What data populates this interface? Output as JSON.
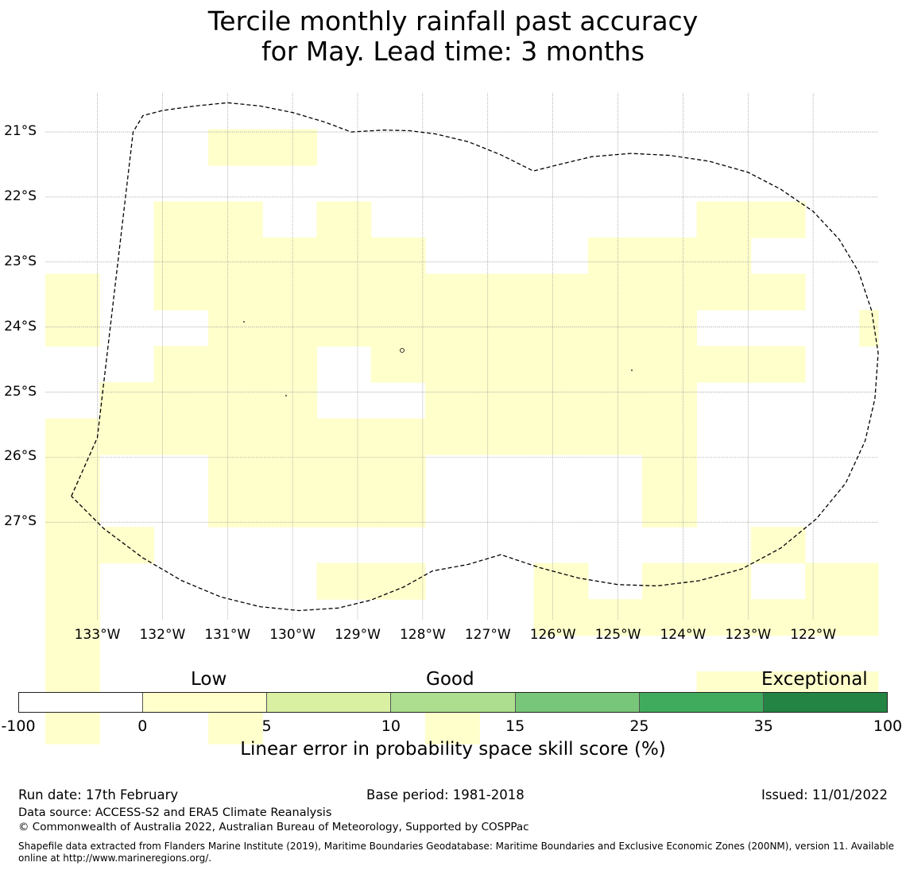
{
  "title_line1": "Tercile monthly rainfall past accuracy",
  "title_line2": "for May. Lead time: 3 months",
  "map": {
    "lon_min": -133.8,
    "lon_max": -121.0,
    "lat_top": -20.4,
    "lat_bottom": -28.5,
    "lat_labels": [
      "21°S",
      "22°S",
      "23°S",
      "24°S",
      "25°S",
      "26°S",
      "27°S"
    ],
    "lat_values": [
      -21,
      -22,
      -23,
      -24,
      -25,
      -26,
      -27
    ],
    "lon_labels": [
      "133°W",
      "132°W",
      "131°W",
      "130°W",
      "129°W",
      "128°W",
      "127°W",
      "126°W",
      "125°W",
      "124°W",
      "123°W",
      "122°W"
    ],
    "lon_values": [
      -133,
      -132,
      -131,
      -130,
      -129,
      -128,
      -127,
      -126,
      -125,
      -124,
      -123,
      -122
    ],
    "grid_lon0": -133.8,
    "grid_lat0": -20.4,
    "grid_step_lon": 0.834,
    "grid_step_lat": 0.556,
    "cell_colors": {
      "1": "#ffffcc",
      "2": "#d9f0a3"
    },
    "grid": [
      "00000000000000001111112",
      "00011000000000000011112",
      "00000000000000000000111",
      "00110100000011000011001",
      "00111110001110000000001",
      "10111111111111000001111",
      "10011111111100011111001",
      "00111011111111000111110",
      "01111001111100000111110",
      "11111111111100001111111",
      "10011110000100000001111",
      "10011110000100000111111",
      "11000000000001000110111",
      "10000110010110111101111",
      "10000000011111111111111",
      "10000000000000001111011",
      "10000000000011111111111",
      "10010001000000000000000"
    ],
    "eez_boundary": [
      [
        -133.4,
        -26.6
      ],
      [
        -133.0,
        -25.7
      ],
      [
        -132.45,
        -21.0
      ],
      [
        -132.3,
        -20.75
      ],
      [
        -132.0,
        -20.67
      ],
      [
        -131.5,
        -20.6
      ],
      [
        -131.0,
        -20.55
      ],
      [
        -130.5,
        -20.6
      ],
      [
        -130.0,
        -20.7
      ],
      [
        -129.5,
        -20.85
      ],
      [
        -129.1,
        -21.0
      ],
      [
        -128.6,
        -20.97
      ],
      [
        -128.2,
        -20.98
      ],
      [
        -127.8,
        -21.03
      ],
      [
        -127.3,
        -21.15
      ],
      [
        -126.8,
        -21.35
      ],
      [
        -126.3,
        -21.6
      ],
      [
        -125.9,
        -21.5
      ],
      [
        -125.4,
        -21.38
      ],
      [
        -124.8,
        -21.33
      ],
      [
        -124.2,
        -21.36
      ],
      [
        -123.6,
        -21.45
      ],
      [
        -123.0,
        -21.62
      ],
      [
        -122.5,
        -21.88
      ],
      [
        -122.0,
        -22.22
      ],
      [
        -121.6,
        -22.65
      ],
      [
        -121.3,
        -23.15
      ],
      [
        -121.1,
        -23.75
      ],
      [
        -121.0,
        -24.4
      ],
      [
        -121.05,
        -25.1
      ],
      [
        -121.2,
        -25.75
      ],
      [
        -121.5,
        -26.4
      ],
      [
        -121.95,
        -26.95
      ],
      [
        -122.5,
        -27.4
      ],
      [
        -123.1,
        -27.72
      ],
      [
        -123.75,
        -27.9
      ],
      [
        -124.4,
        -27.98
      ],
      [
        -125.0,
        -27.96
      ],
      [
        -125.6,
        -27.86
      ],
      [
        -126.2,
        -27.7
      ],
      [
        -126.8,
        -27.5
      ],
      [
        -127.3,
        -27.65
      ],
      [
        -127.85,
        -27.75
      ],
      [
        -128.3,
        -28.0
      ],
      [
        -128.8,
        -28.2
      ],
      [
        -129.3,
        -28.32
      ],
      [
        -129.9,
        -28.36
      ],
      [
        -130.5,
        -28.3
      ],
      [
        -131.1,
        -28.15
      ],
      [
        -131.7,
        -27.9
      ],
      [
        -132.3,
        -27.55
      ],
      [
        -132.9,
        -27.1
      ],
      [
        -133.4,
        -26.6
      ]
    ]
  },
  "legend": {
    "categories": [
      "Low",
      "Good",
      "Exceptional"
    ],
    "colors": [
      "#ffffff",
      "#ffffcc",
      "#d9f0a3",
      "#addd8e",
      "#78c679",
      "#41ab5d",
      "#238443"
    ],
    "ticks": [
      "-100",
      "0",
      "5",
      "10",
      "15",
      "25",
      "35",
      "100"
    ],
    "label": "Linear error in probability space skill score (%)"
  },
  "footer": {
    "run_date": "Run date: 17th February",
    "base_period": "Base period: 1981-2018",
    "issued": "Issued: 11/01/2022",
    "data_source": "Data source: ACCESS-S2 and ERA5 Climate Reanalysis",
    "copyright": "© Commonwealth of Australia 2022, Australian Bureau of Meteorology, Supported by COSPPac",
    "shapefile": "Shapefile data extracted from Flanders Marine Institute (2019), Maritime Boundaries Geodatabase: Maritime Boundaries and Exclusive Economic Zones (200NM), version 11. Available online at http://www.marineregions.org/."
  }
}
